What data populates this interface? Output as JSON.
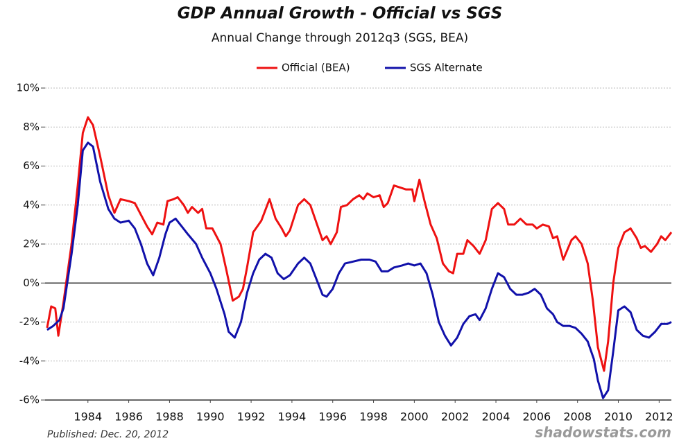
{
  "chart_data": {
    "type": "line",
    "title": "GDP Annual Growth - Official vs SGS",
    "subtitle": "Annual Change through 2012q3  (SGS, BEA)",
    "published": "Published: Dec. 20, 2012",
    "source": "shadowstats.com",
    "xlim": [
      1981.9,
      2012.6
    ],
    "xticks": [
      1984,
      1986,
      1988,
      1990,
      1992,
      1994,
      1996,
      1998,
      2000,
      2002,
      2004,
      2006,
      2008,
      2010,
      2012
    ],
    "ylim": [
      -6,
      10
    ],
    "yticks": [
      {
        "value": -6,
        "label": "-6%"
      },
      {
        "value": -4,
        "label": "-4%"
      },
      {
        "value": -2,
        "label": "-2%"
      },
      {
        "value": 0,
        "label": "0%"
      },
      {
        "value": 2,
        "label": "2%"
      },
      {
        "value": 4,
        "label": "4%"
      },
      {
        "value": 6,
        "label": "6%"
      },
      {
        "value": 8,
        "label": "8%"
      },
      {
        "value": 10,
        "label": "10%"
      }
    ],
    "grid": true,
    "legend": "top",
    "series": [
      {
        "name": "Official (BEA)",
        "color": "#ee1111",
        "x": [
          1982.0,
          1982.2,
          1982.4,
          1982.55,
          1982.8,
          1983.2,
          1983.5,
          1983.75,
          1984.0,
          1984.25,
          1984.6,
          1985.0,
          1985.3,
          1985.6,
          1986.0,
          1986.3,
          1986.6,
          1986.9,
          1987.15,
          1987.4,
          1987.7,
          1987.9,
          1988.2,
          1988.4,
          1988.7,
          1988.9,
          1989.1,
          1989.4,
          1989.6,
          1989.8,
          1990.1,
          1990.5,
          1990.8,
          1991.1,
          1991.4,
          1991.6,
          1991.8,
          1992.1,
          1992.5,
          1992.9,
          1993.2,
          1993.5,
          1993.7,
          1993.9,
          1994.3,
          1994.6,
          1994.9,
          1995.2,
          1995.5,
          1995.7,
          1995.9,
          1996.2,
          1996.4,
          1996.7,
          1997.0,
          1997.3,
          1997.5,
          1997.7,
          1998.0,
          1998.3,
          1998.5,
          1998.7,
          1999.0,
          1999.3,
          1999.6,
          1999.9,
          2000.0,
          2000.25,
          2000.5,
          2000.8,
          2001.1,
          2001.4,
          2001.7,
          2001.9,
          2002.1,
          2002.4,
          2002.6,
          2002.9,
          2003.2,
          2003.5,
          2003.8,
          2004.1,
          2004.4,
          2004.6,
          2004.9,
          2005.2,
          2005.5,
          2005.8,
          2006.0,
          2006.3,
          2006.6,
          2006.8,
          2007.0,
          2007.3,
          2007.7,
          2007.9,
          2008.2,
          2008.5,
          2008.75,
          2009.0,
          2009.3,
          2009.5,
          2009.75,
          2010.0,
          2010.3,
          2010.6,
          2010.9,
          2011.1,
          2011.3,
          2011.6,
          2011.9,
          2012.1,
          2012.3,
          2012.6
        ],
        "values": [
          -2.3,
          -1.2,
          -1.3,
          -2.7,
          -1.0,
          2.0,
          5.0,
          7.7,
          8.5,
          8.1,
          6.5,
          4.5,
          3.6,
          4.3,
          4.2,
          4.1,
          3.5,
          2.9,
          2.5,
          3.1,
          3.0,
          4.2,
          4.3,
          4.4,
          4.0,
          3.6,
          3.9,
          3.6,
          3.8,
          2.8,
          2.8,
          2.0,
          0.6,
          -0.9,
          -0.7,
          -0.3,
          0.8,
          2.6,
          3.2,
          4.3,
          3.3,
          2.8,
          2.4,
          2.7,
          4.0,
          4.3,
          4.0,
          3.1,
          2.2,
          2.4,
          2.0,
          2.6,
          3.9,
          4.0,
          4.3,
          4.5,
          4.3,
          4.6,
          4.4,
          4.5,
          3.9,
          4.1,
          5.0,
          4.9,
          4.8,
          4.8,
          4.2,
          5.3,
          4.2,
          3.0,
          2.3,
          1.0,
          0.6,
          0.5,
          1.5,
          1.5,
          2.2,
          1.9,
          1.5,
          2.2,
          3.8,
          4.1,
          3.8,
          3.0,
          3.0,
          3.3,
          3.0,
          3.0,
          2.8,
          3.0,
          2.9,
          2.3,
          2.4,
          1.2,
          2.2,
          2.4,
          2.0,
          1.0,
          -0.9,
          -3.3,
          -4.5,
          -3.0,
          0.0,
          1.8,
          2.6,
          2.8,
          2.3,
          1.8,
          1.9,
          1.6,
          2.0,
          2.4,
          2.2,
          2.6
        ]
      },
      {
        "name": "SGS Alternate",
        "color": "#1111aa",
        "x": [
          1982.0,
          1982.3,
          1982.6,
          1982.8,
          1983.2,
          1983.5,
          1983.75,
          1984.0,
          1984.25,
          1984.6,
          1985.0,
          1985.3,
          1985.6,
          1986.0,
          1986.3,
          1986.6,
          1986.9,
          1987.2,
          1987.5,
          1987.8,
          1988.0,
          1988.3,
          1988.6,
          1988.9,
          1989.3,
          1989.6,
          1990.0,
          1990.3,
          1990.7,
          1990.9,
          1991.2,
          1991.5,
          1991.8,
          1992.1,
          1992.4,
          1992.7,
          1993.0,
          1993.3,
          1993.6,
          1993.9,
          1994.3,
          1994.6,
          1994.9,
          1995.2,
          1995.5,
          1995.7,
          1996.0,
          1996.3,
          1996.6,
          1997.0,
          1997.4,
          1997.8,
          1998.1,
          1998.4,
          1998.7,
          1999.0,
          1999.4,
          1999.7,
          2000.0,
          2000.3,
          2000.6,
          2000.9,
          2001.2,
          2001.5,
          2001.8,
          2002.1,
          2002.4,
          2002.7,
          2003.0,
          2003.2,
          2003.5,
          2003.8,
          2004.1,
          2004.4,
          2004.7,
          2005.0,
          2005.3,
          2005.6,
          2005.9,
          2006.2,
          2006.5,
          2006.8,
          2007.0,
          2007.3,
          2007.6,
          2007.9,
          2008.2,
          2008.5,
          2008.8,
          2009.0,
          2009.25,
          2009.5,
          2009.75,
          2010.0,
          2010.3,
          2010.6,
          2010.9,
          2011.2,
          2011.5,
          2011.8,
          2012.1,
          2012.4,
          2012.6
        ],
        "values": [
          -2.4,
          -2.2,
          -1.9,
          -1.3,
          1.5,
          4.0,
          6.8,
          7.2,
          7.0,
          5.2,
          3.8,
          3.3,
          3.1,
          3.2,
          2.8,
          2.0,
          1.0,
          0.4,
          1.3,
          2.5,
          3.1,
          3.3,
          2.9,
          2.5,
          2.0,
          1.3,
          0.5,
          -0.3,
          -1.6,
          -2.5,
          -2.8,
          -2.0,
          -0.5,
          0.5,
          1.2,
          1.5,
          1.3,
          0.5,
          0.2,
          0.4,
          1.0,
          1.3,
          1.0,
          0.2,
          -0.6,
          -0.7,
          -0.3,
          0.5,
          1.0,
          1.1,
          1.2,
          1.2,
          1.1,
          0.6,
          0.6,
          0.8,
          0.9,
          1.0,
          0.9,
          1.0,
          0.5,
          -0.6,
          -2.0,
          -2.7,
          -3.2,
          -2.8,
          -2.1,
          -1.7,
          -1.6,
          -1.9,
          -1.3,
          -0.3,
          0.5,
          0.3,
          -0.3,
          -0.6,
          -0.6,
          -0.5,
          -0.3,
          -0.6,
          -1.3,
          -1.6,
          -2.0,
          -2.2,
          -2.2,
          -2.3,
          -2.6,
          -3.0,
          -3.9,
          -5.0,
          -5.9,
          -5.5,
          -3.5,
          -1.4,
          -1.2,
          -1.5,
          -2.4,
          -2.7,
          -2.8,
          -2.5,
          -2.1,
          -2.1,
          -2.0
        ]
      }
    ]
  }
}
